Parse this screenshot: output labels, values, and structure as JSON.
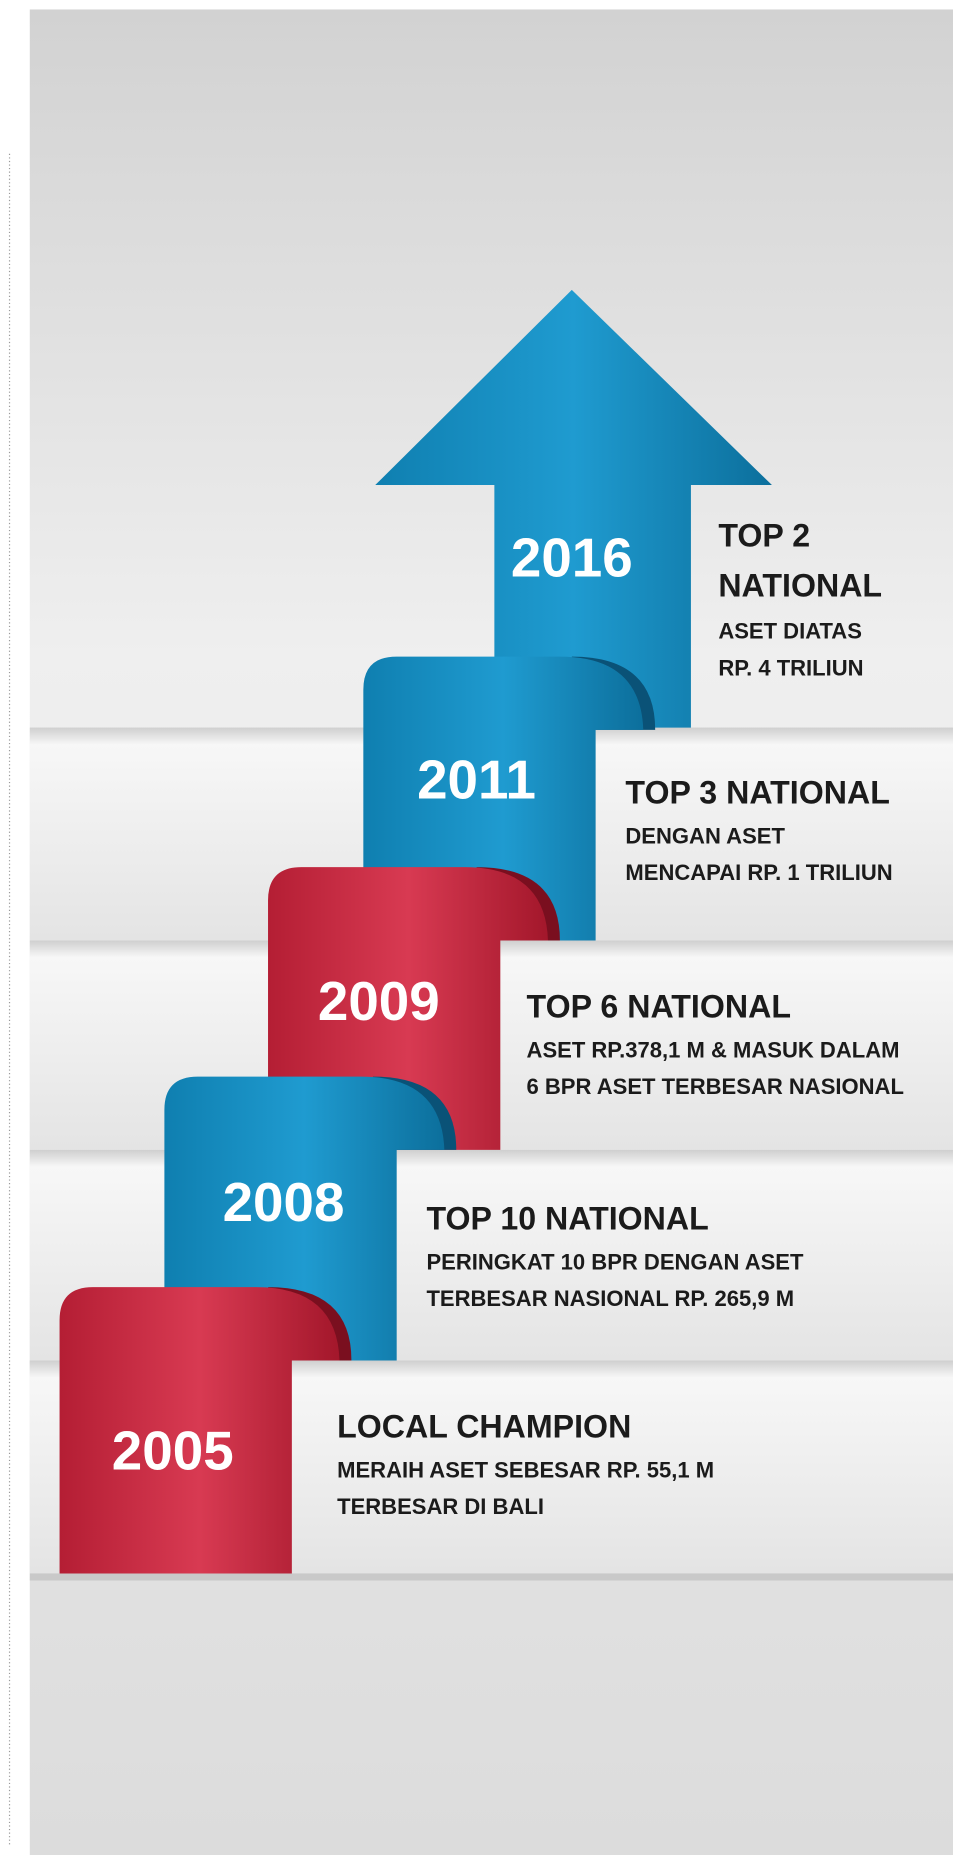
{
  "milestones": [
    {
      "year": "2016",
      "title_lines": [
        "TOP 2",
        "NATIONAL"
      ],
      "description_lines": [
        "ASET DIATAS",
        "RP. 4 TRILIUN"
      ]
    },
    {
      "year": "2011",
      "title_lines": [
        "TOP 3 NATIONAL"
      ],
      "description_lines": [
        "DENGAN ASET",
        "MENCAPAI RP. 1 TRILIUN"
      ]
    },
    {
      "year": "2009",
      "title_lines": [
        "TOP 6 NATIONAL"
      ],
      "description_lines": [
        "ASET RP.378,1 M & MASUK DALAM",
        "6 BPR ASET TERBESAR NASIONAL"
      ]
    },
    {
      "year": "2008",
      "title_lines": [
        "TOP 10 NATIONAL"
      ],
      "description_lines": [
        "PERINGKAT 10 BPR DENGAN ASET",
        "TERBESAR NASIONAL RP. 265,9 M"
      ]
    },
    {
      "year": "2005",
      "title_lines": [
        "LOCAL CHAMPION"
      ],
      "description_lines": [
        "MERAIH ASET SEBESAR RP. 55,1 M",
        "TERBESAR DI BALI"
      ]
    }
  ]
}
